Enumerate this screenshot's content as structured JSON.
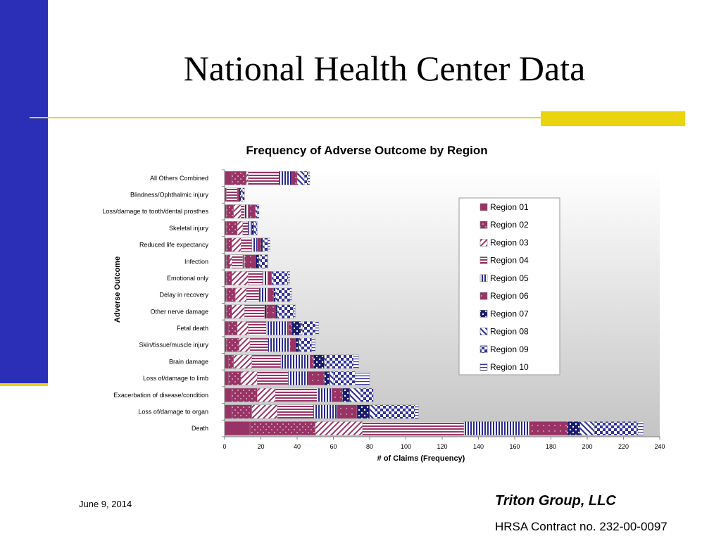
{
  "slide": {
    "title": "National Health Center Data",
    "footer_date": "June 9, 2014",
    "footer_company": "Triton Group, LLC",
    "footer_contract": "HRSA Contract no. 232-00-0097"
  },
  "colors": {
    "left_bar": "#2b2fb8",
    "accent_yellow": "#e9d40e"
  },
  "chart_data": {
    "type": "bar",
    "orientation": "horizontal",
    "stacked": true,
    "title": "Frequency of Adverse Outcome by Region",
    "xlabel": "# of Claims (Frequency)",
    "ylabel": "Adverse Outcome",
    "xlim": [
      0,
      240
    ],
    "xticks": [
      0,
      20,
      40,
      60,
      80,
      100,
      120,
      140,
      160,
      180,
      200,
      220,
      240
    ],
    "grid": false,
    "legend_position": "right",
    "categories": [
      "All Others Combined",
      "Blindness/Ophthalmic injury",
      "Loss/damage to tooth/dental prosthes",
      "Skeletal injury",
      "Reduced life expectancy",
      "Infection",
      "Emotional only",
      "Delay in recovery",
      "Other nerve damage",
      "Fetal death",
      "Skin/tissue/muscle injury",
      "Brain damage",
      "Loss of/damage to limb",
      "Exacerbation of disease/condition",
      "Loss of/damage to organ",
      "Death"
    ],
    "series": [
      {
        "name": "Region 01",
        "color": "#993366",
        "pattern": "solid",
        "values": [
          4,
          1,
          1,
          1,
          1,
          1,
          1,
          1,
          1,
          2,
          1,
          2,
          2,
          4,
          4,
          14
        ]
      },
      {
        "name": "Region 02",
        "color": "#993366",
        "pattern": "dots",
        "values": [
          8,
          0,
          4,
          6,
          3,
          2,
          3,
          5,
          3,
          5,
          7,
          3,
          7,
          14,
          11,
          36
        ]
      },
      {
        "name": "Region 03",
        "color": "#993366",
        "pattern": "diagonal",
        "values": [
          1,
          0,
          4,
          3,
          5,
          1,
          9,
          6,
          7,
          6,
          6,
          10,
          9,
          10,
          14,
          26
        ]
      },
      {
        "name": "Region 04",
        "color": "#993366",
        "pattern": "horizontal",
        "values": [
          17,
          6,
          2,
          3,
          6,
          6,
          8,
          7,
          11,
          10,
          10,
          16,
          17,
          23,
          20,
          56
        ]
      },
      {
        "name": "Region 05",
        "color": "#2a2a8a",
        "pattern": "vertical",
        "values": [
          7,
          0,
          2,
          2,
          3,
          1,
          3,
          5,
          1,
          12,
          12,
          16,
          11,
          8,
          13,
          36
        ]
      },
      {
        "name": "Region 06",
        "color": "#993366",
        "pattern": "dots2",
        "values": [
          3,
          1,
          4,
          0,
          2,
          6,
          2,
          3,
          5,
          2,
          3,
          2,
          9,
          6,
          11,
          21
        ]
      },
      {
        "name": "Region 07",
        "color": "#1a1a6e",
        "pattern": "bigdots",
        "values": [
          0,
          1,
          0,
          1,
          1,
          2,
          0,
          1,
          1,
          5,
          2,
          6,
          3,
          4,
          7,
          7
        ]
      },
      {
        "name": "Region 08",
        "color": "#333399",
        "pattern": "backdiag",
        "values": [
          4,
          1,
          1,
          1,
          1,
          1,
          1,
          1,
          1,
          1,
          1,
          1,
          2,
          6,
          3,
          8
        ]
      },
      {
        "name": "Region 09",
        "color": "#333399",
        "pattern": "check",
        "values": [
          2,
          1,
          1,
          1,
          2,
          4,
          8,
          7,
          8,
          7,
          6,
          15,
          12,
          7,
          22,
          24
        ]
      },
      {
        "name": "Region 10",
        "color": "#333399",
        "pattern": "hlines",
        "values": [
          1,
          0,
          0,
          0,
          1,
          0,
          1,
          1,
          1,
          2,
          2,
          3,
          8,
          0,
          2,
          3
        ]
      }
    ]
  }
}
